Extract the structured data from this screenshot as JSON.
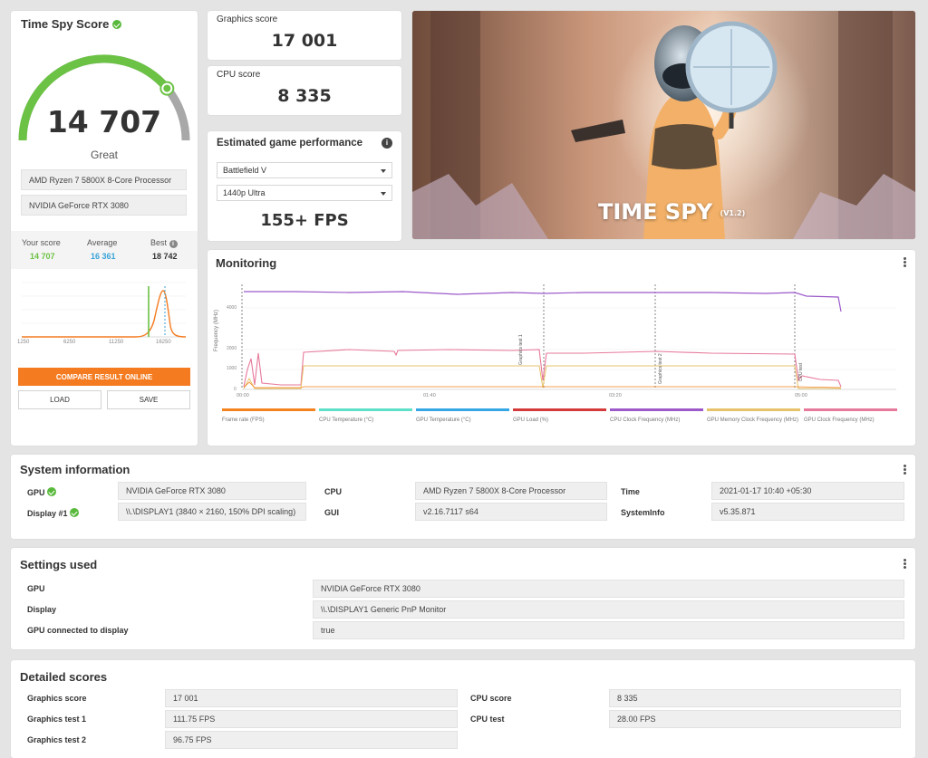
{
  "score_card": {
    "title": "Time Spy Score",
    "score": "14 707",
    "rating": "Great",
    "cpu_name": "AMD Ryzen 7 5800X 8-Core Processor",
    "gpu_name": "NVIDIA GeForce RTX 3080",
    "your_score_label": "Your score",
    "your_score": "14 707",
    "average_label": "Average",
    "average": "16 361",
    "best_label": "Best",
    "best": "18 742",
    "hist_ticks": [
      "1250",
      "6250",
      "11250",
      "16250"
    ],
    "compare_button": "COMPARE RESULT ONLINE",
    "load_button": "LOAD",
    "save_button": "SAVE",
    "gauge_fraction": 0.78,
    "colors": {
      "green": "#6bc244",
      "blue": "#3aa3d9",
      "orange": "#f47b20"
    }
  },
  "graphics_score": {
    "label": "Graphics score",
    "value": "17 001"
  },
  "cpu_score": {
    "label": "CPU score",
    "value": "8 335"
  },
  "game_perf": {
    "title": "Estimated game performance",
    "game": "Battlefield V",
    "preset": "1440p Ultra",
    "fps": "155+ FPS"
  },
  "hero": {
    "title": "TIME SPY",
    "version": "(V1.2)"
  },
  "monitoring": {
    "title": "Monitoring",
    "y_axis_label": "Frequency (MHz)",
    "y_ticks": [
      "4000",
      "2000",
      "1000",
      "0"
    ],
    "x_ticks": [
      "00:00",
      "01:40",
      "03:20",
      "05:00"
    ],
    "markers": [
      "Graphics test 1",
      "Graphics test 2",
      "CPU test"
    ],
    "legend": [
      {
        "label": "Frame rate (FPS)",
        "color": "#f2831f"
      },
      {
        "label": "CPU Temperature (°C)",
        "color": "#5fe0c8"
      },
      {
        "label": "GPU Temperature (°C)",
        "color": "#35a6e6"
      },
      {
        "label": "GPU Load (%)",
        "color": "#d53a3a"
      },
      {
        "label": "CPU Clock Frequency (MHz)",
        "color": "#9b59c9"
      },
      {
        "label": "GPU Memory Clock Frequency (MHz)",
        "color": "#e6c36a"
      },
      {
        "label": "GPU Clock Frequency (MHz)",
        "color": "#e7799a"
      }
    ]
  },
  "system_info": {
    "title": "System information",
    "gpu_label": "GPU",
    "gpu_value": "NVIDIA GeForce RTX 3080",
    "display_label": "Display #1",
    "display_value": "\\\\.\\DISPLAY1 (3840 × 2160, 150% DPI scaling)",
    "cpu_label": "CPU",
    "cpu_value": "AMD Ryzen 7 5800X 8-Core Processor",
    "gui_label": "GUI",
    "gui_value": "v2.16.7117 s64",
    "time_label": "Time",
    "time_value": "2021-01-17 10:40 +05:30",
    "sysinfo_label": "SystemInfo",
    "sysinfo_value": "v5.35.871"
  },
  "settings": {
    "title": "Settings used",
    "rows": [
      {
        "label": "GPU",
        "value": "NVIDIA GeForce RTX 3080"
      },
      {
        "label": "Display",
        "value": "\\\\.\\DISPLAY1 Generic PnP Monitor"
      },
      {
        "label": "GPU connected to display",
        "value": "true"
      }
    ]
  },
  "detailed": {
    "title": "Detailed scores",
    "left": [
      {
        "label": "Graphics score",
        "value": "17 001"
      },
      {
        "label": "Graphics test 1",
        "value": "111.75 FPS"
      },
      {
        "label": "Graphics test 2",
        "value": "96.75 FPS"
      }
    ],
    "right": [
      {
        "label": "CPU score",
        "value": "8 335"
      },
      {
        "label": "CPU test",
        "value": "28.00 FPS"
      }
    ]
  }
}
